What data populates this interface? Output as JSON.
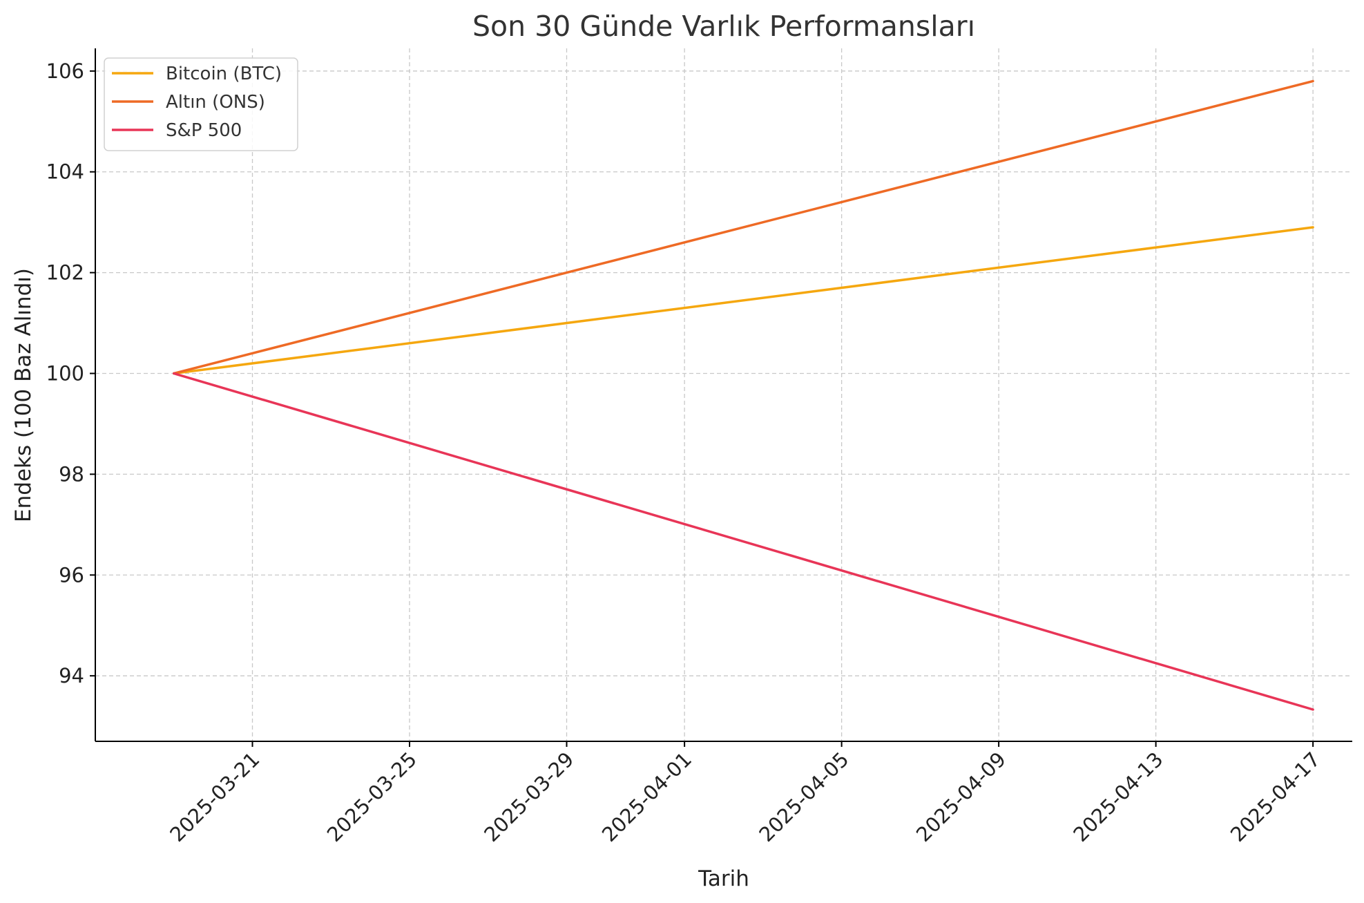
{
  "chart_data": {
    "type": "line",
    "title": "Son 30 Günde Varlık Performansları",
    "xlabel": "Tarih",
    "ylabel": "Endeks (100 Baz Alındı)",
    "x_start": "2025-03-19",
    "x_end": "2025-04-17",
    "xlim": [
      "2025-03-17",
      "2025-04-18"
    ],
    "ylim": [
      92.7,
      106.45
    ],
    "x_ticks": [
      "2025-03-21",
      "2025-03-25",
      "2025-03-29",
      "2025-04-01",
      "2025-04-05",
      "2025-04-09",
      "2025-04-13",
      "2025-04-17"
    ],
    "y_ticks": [
      94,
      96,
      98,
      100,
      102,
      104,
      106
    ],
    "grid": true,
    "legend_position": "upper-left",
    "series": [
      {
        "name": "Bitcoin (BTC)",
        "color": "#f5a70f",
        "values": [
          100,
          102.9
        ]
      },
      {
        "name": "Altın (ONS)",
        "color": "#ee6a25",
        "values": [
          100,
          105.8
        ]
      },
      {
        "name": "S&P 500",
        "color": "#e83557",
        "values": [
          100,
          93.33
        ]
      }
    ]
  }
}
